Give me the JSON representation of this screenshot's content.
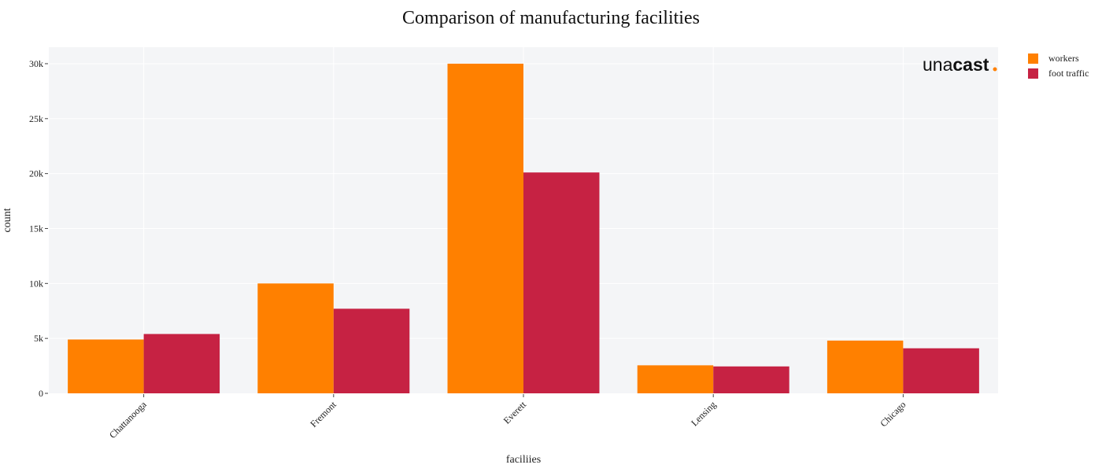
{
  "chart_data": {
    "type": "bar",
    "title": "Comparison of manufacturing facilities",
    "xlabel": "faciliies",
    "ylabel": "count",
    "categories": [
      "Chattanooga",
      "Fremont",
      "Everett",
      "Lensing",
      "Chicago"
    ],
    "series": [
      {
        "name": "workers",
        "color": "#ff8000",
        "values": [
          4900,
          10000,
          30000,
          2550,
          4800
        ]
      },
      {
        "name": "foot traffic",
        "color": "#c62243",
        "values": [
          5400,
          7700,
          20100,
          2450,
          4100
        ]
      }
    ],
    "ylim": [
      0,
      31500
    ],
    "yticks": [
      0,
      5000,
      10000,
      15000,
      20000,
      25000,
      30000
    ],
    "ytick_labels": [
      "0",
      "5k",
      "10k",
      "15k",
      "20k",
      "25k",
      "30k"
    ],
    "grid": true,
    "legend_position": "top-right",
    "plot_background": "#f4f5f7"
  },
  "logo": {
    "text_regular": "una",
    "text_bold": "cast",
    "dot": ".",
    "dot_color": "#ff8000"
  }
}
